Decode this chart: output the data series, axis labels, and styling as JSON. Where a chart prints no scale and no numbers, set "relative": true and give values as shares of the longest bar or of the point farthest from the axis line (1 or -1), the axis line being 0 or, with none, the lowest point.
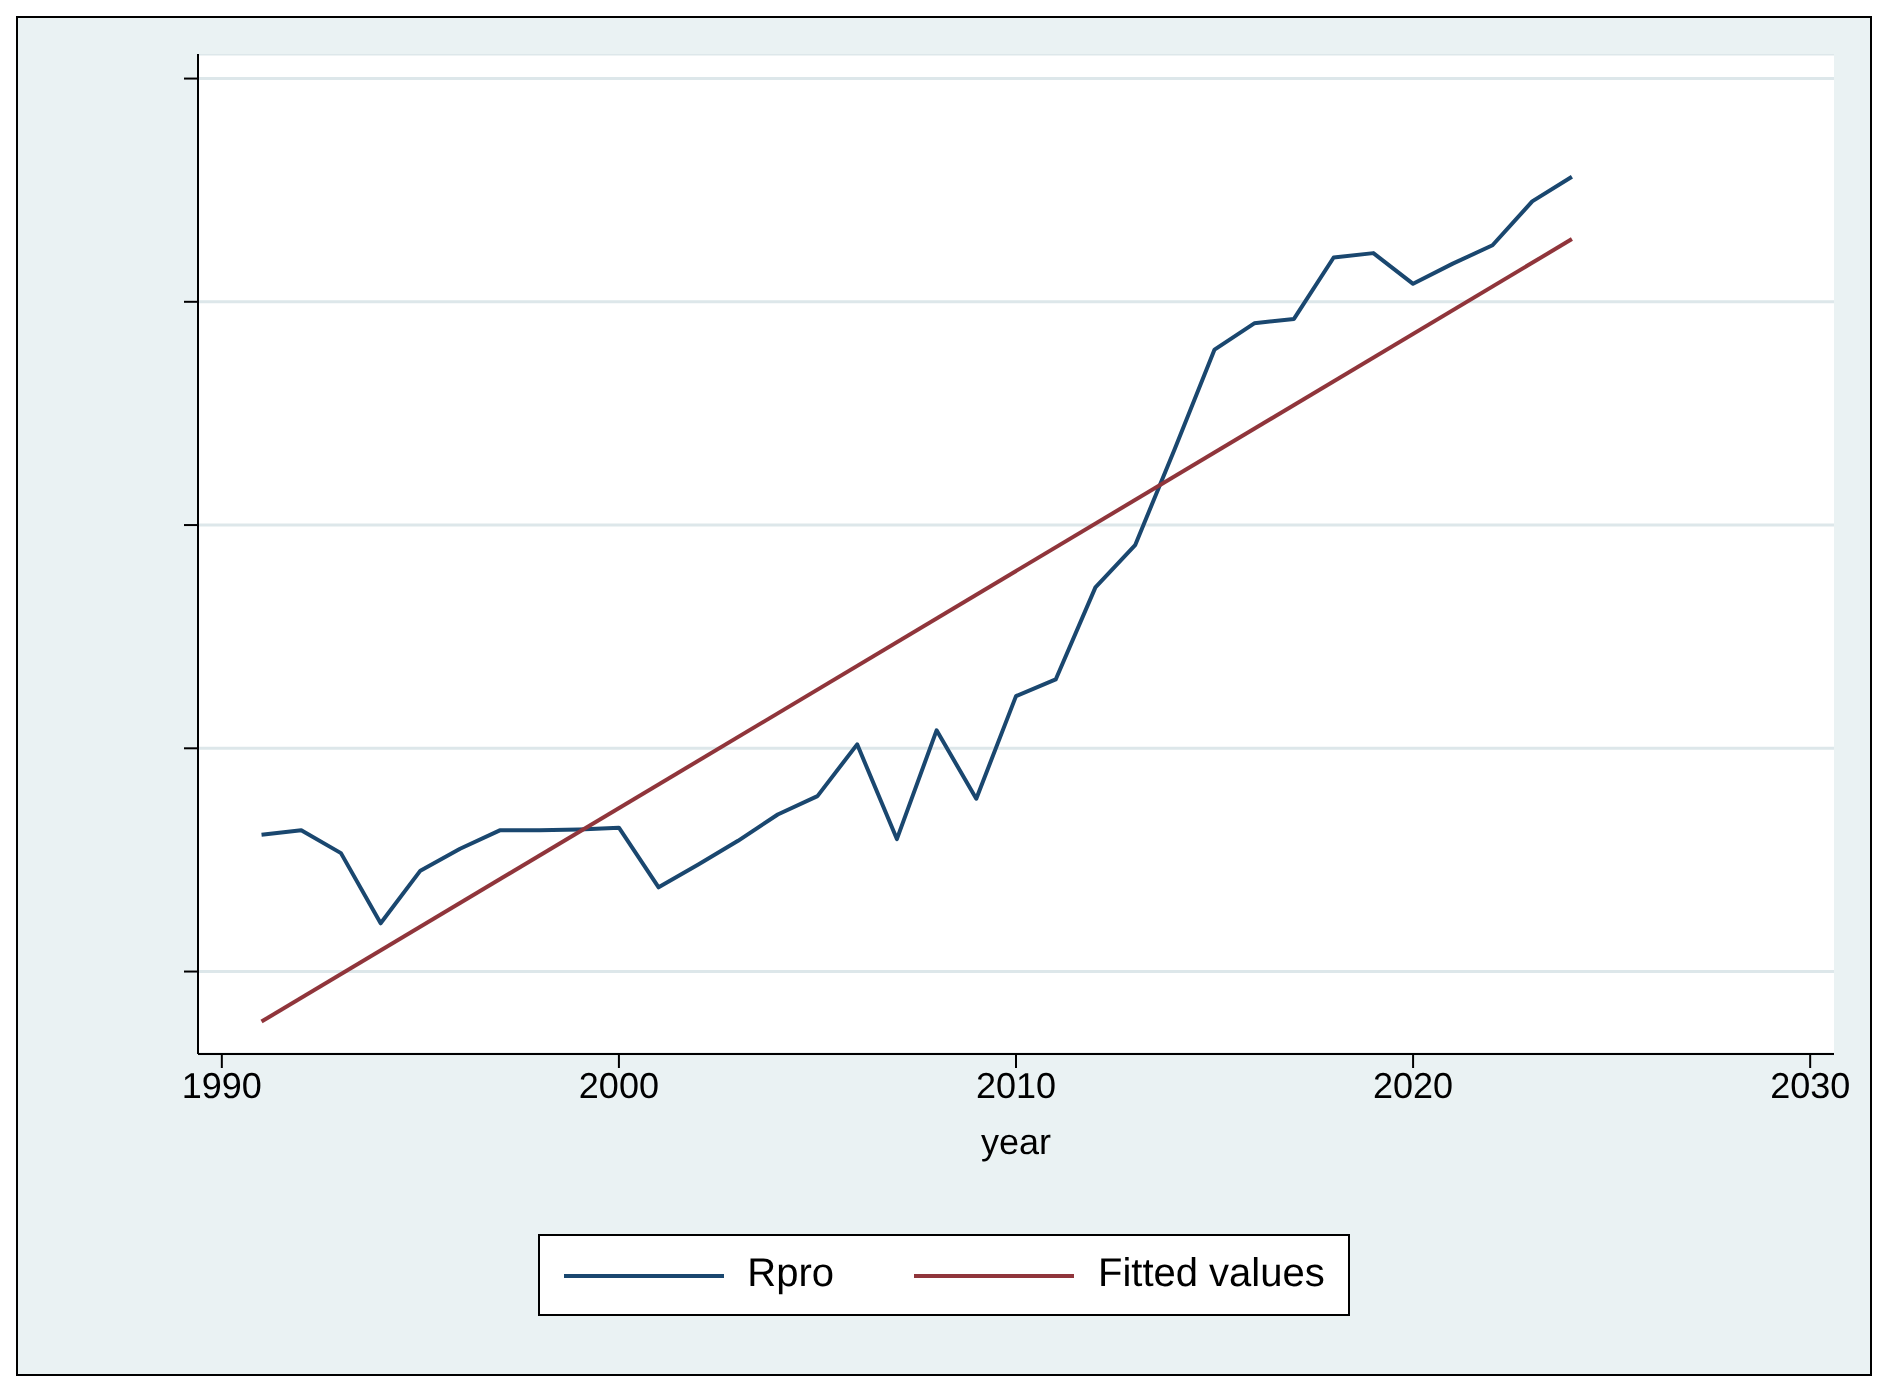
{
  "chart_data": {
    "type": "line",
    "xlabel": "year",
    "relative": true,
    "xlim": [
      1989.4,
      2030.6
    ],
    "xticks": [
      1990,
      2000,
      2010,
      2020,
      2030
    ],
    "grid": "y",
    "legend": "bottom",
    "marker": "none",
    "line_style": "solid",
    "tick_labels": "x",
    "series": [
      {
        "name": "Rpro",
        "color": "#1a476f",
        "x": [
          1991,
          1992,
          1993,
          1994,
          1995,
          1996,
          1997,
          1998,
          1999,
          2000,
          2001,
          2002,
          2003,
          2004,
          2005,
          2006,
          2007,
          2008,
          2009,
          2010,
          2011,
          2012,
          2013,
          2014,
          2015,
          2016,
          2017,
          2018,
          2019,
          2020,
          2021,
          2022,
          2023,
          2024
        ],
        "values": [
          0.25,
          0.255,
          0.229,
          0.149,
          0.209,
          0.234,
          0.255,
          0.255,
          0.256,
          0.258,
          0.19,
          0.216,
          0.243,
          0.273,
          0.294,
          0.353,
          0.245,
          0.369,
          0.291,
          0.408,
          0.427,
          0.532,
          0.58,
          0.69,
          0.803,
          0.833,
          0.838,
          0.908,
          0.913,
          0.878,
          0.901,
          0.922,
          0.972,
          1
        ]
      },
      {
        "name": "Fitted values",
        "color": "#90353b",
        "x": [
          1991,
          2024
        ],
        "values": [
          0.037,
          0.929
        ]
      }
    ]
  }
}
